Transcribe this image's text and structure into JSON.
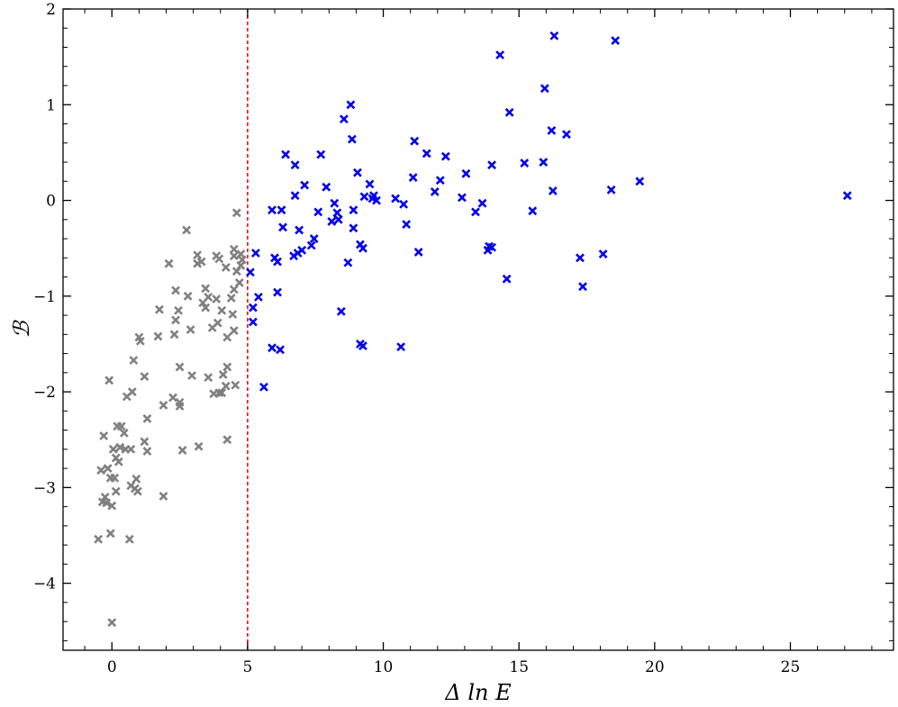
{
  "chart_data": {
    "type": "scatter",
    "title": "",
    "xlabel": "Δ ln E",
    "ylabel": "ℬ",
    "xlim": [
      -1.8,
      28.8
    ],
    "ylim": [
      -4.7,
      2.0
    ],
    "xticks": [
      0,
      5,
      10,
      15,
      20,
      25
    ],
    "yticks": [
      -4,
      -3,
      -2,
      -1,
      0,
      1,
      2
    ],
    "grid": false,
    "marker": "x",
    "threshold": {
      "x": 5,
      "color": "#e00000",
      "style": "dashed"
    },
    "series": [
      {
        "color": "#808080",
        "points": [
          [
            -0.5,
            -3.54
          ],
          [
            -0.4,
            -2.82
          ],
          [
            -0.35,
            -3.15
          ],
          [
            -0.3,
            -2.46
          ],
          [
            -0.25,
            -3.1
          ],
          [
            -0.2,
            -3.16
          ],
          [
            -0.15,
            -2.8
          ],
          [
            -0.1,
            -1.88
          ],
          [
            -0.05,
            -2.9
          ],
          [
            -0.05,
            -3.48
          ],
          [
            0,
            -4.41
          ],
          [
            0,
            -3.19
          ],
          [
            0.05,
            -2.6
          ],
          [
            0.1,
            -2.9
          ],
          [
            0.15,
            -3.04
          ],
          [
            0.15,
            -2.69
          ],
          [
            0.2,
            -2.36
          ],
          [
            0.25,
            -2.73
          ],
          [
            0.3,
            -2.58
          ],
          [
            0.35,
            -2.36
          ],
          [
            0.45,
            -2.43
          ],
          [
            0.5,
            -2.6
          ],
          [
            0.55,
            -2.05
          ],
          [
            0.65,
            -3.54
          ],
          [
            0.7,
            -2.6
          ],
          [
            0.7,
            -2.98
          ],
          [
            0.75,
            -2.0
          ],
          [
            0.8,
            -1.67
          ],
          [
            0.85,
            -3.01
          ],
          [
            0.9,
            -2.91
          ],
          [
            0.95,
            -3.04
          ],
          [
            1.0,
            -1.43
          ],
          [
            1.05,
            -1.47
          ],
          [
            1.2,
            -1.84
          ],
          [
            1.2,
            -2.52
          ],
          [
            1.3,
            -2.28
          ],
          [
            1.3,
            -2.62
          ],
          [
            1.7,
            -1.42
          ],
          [
            1.75,
            -1.14
          ],
          [
            1.9,
            -3.09
          ],
          [
            1.9,
            -2.14
          ],
          [
            2.1,
            -0.66
          ],
          [
            2.25,
            -2.06
          ],
          [
            2.3,
            -1.4
          ],
          [
            2.35,
            -1.25
          ],
          [
            2.35,
            -0.94
          ],
          [
            2.45,
            -1.15
          ],
          [
            2.5,
            -2.15
          ],
          [
            2.5,
            -2.11
          ],
          [
            2.5,
            -1.74
          ],
          [
            2.6,
            -2.61
          ],
          [
            2.75,
            -0.31
          ],
          [
            2.8,
            -1.0
          ],
          [
            2.9,
            -1.35
          ],
          [
            2.95,
            -1.83
          ],
          [
            3.15,
            -0.66
          ],
          [
            3.15,
            -0.57
          ],
          [
            3.2,
            -2.57
          ],
          [
            3.3,
            -0.64
          ],
          [
            3.35,
            -1.07
          ],
          [
            3.45,
            -1.12
          ],
          [
            3.45,
            -0.92
          ],
          [
            3.55,
            -1.01
          ],
          [
            3.55,
            -1.85
          ],
          [
            3.7,
            -1.33
          ],
          [
            3.75,
            -2.02
          ],
          [
            3.85,
            -1.03
          ],
          [
            3.85,
            -0.58
          ],
          [
            3.9,
            -1.28
          ],
          [
            3.95,
            -2.01
          ],
          [
            3.95,
            -0.61
          ],
          [
            4.05,
            -1.15
          ],
          [
            4.05,
            -2.01
          ],
          [
            4.1,
            -1.82
          ],
          [
            4.2,
            -0.7
          ],
          [
            4.2,
            -1.94
          ],
          [
            4.25,
            -1.74
          ],
          [
            4.25,
            -1.43
          ],
          [
            4.25,
            -2.5
          ],
          [
            4.4,
            -1.02
          ],
          [
            4.45,
            -1.19
          ],
          [
            4.5,
            -0.93
          ],
          [
            4.5,
            -0.58
          ],
          [
            4.5,
            -0.51
          ],
          [
            4.5,
            -1.36
          ],
          [
            4.55,
            -1.93
          ],
          [
            4.6,
            -0.74
          ],
          [
            4.6,
            -0.13
          ],
          [
            4.7,
            -0.86
          ],
          [
            4.75,
            -0.56
          ],
          [
            4.75,
            -0.68
          ],
          [
            4.8,
            -0.62
          ]
        ]
      },
      {
        "color": "#0000ee",
        "points": [
          [
            5.1,
            -0.75
          ],
          [
            5.2,
            -1.27
          ],
          [
            5.2,
            -1.12
          ],
          [
            5.3,
            -0.55
          ],
          [
            5.4,
            -1.01
          ],
          [
            5.6,
            -1.95
          ],
          [
            5.9,
            -0.1
          ],
          [
            5.9,
            -1.54
          ],
          [
            6.0,
            -0.6
          ],
          [
            6.1,
            -0.64
          ],
          [
            6.1,
            -0.96
          ],
          [
            6.2,
            -1.56
          ],
          [
            6.25,
            -0.1
          ],
          [
            6.3,
            -0.28
          ],
          [
            6.4,
            0.48
          ],
          [
            6.7,
            -0.58
          ],
          [
            6.75,
            0.05
          ],
          [
            6.75,
            0.37
          ],
          [
            6.85,
            -0.55
          ],
          [
            6.9,
            -0.31
          ],
          [
            7.0,
            -0.52
          ],
          [
            7.1,
            0.16
          ],
          [
            7.35,
            -0.47
          ],
          [
            7.45,
            -0.4
          ],
          [
            7.6,
            -0.12
          ],
          [
            7.7,
            0.48
          ],
          [
            7.9,
            0.14
          ],
          [
            8.1,
            -0.22
          ],
          [
            8.2,
            -0.03
          ],
          [
            8.3,
            -0.13
          ],
          [
            8.35,
            -0.2
          ],
          [
            8.45,
            -1.16
          ],
          [
            8.55,
            0.85
          ],
          [
            8.7,
            -0.65
          ],
          [
            8.8,
            1.0
          ],
          [
            8.85,
            0.64
          ],
          [
            8.9,
            -0.1
          ],
          [
            8.9,
            -0.29
          ],
          [
            9.05,
            0.29
          ],
          [
            9.15,
            -1.5
          ],
          [
            9.15,
            -0.46
          ],
          [
            9.25,
            -0.5
          ],
          [
            9.25,
            -1.52
          ],
          [
            9.3,
            0.04
          ],
          [
            9.5,
            0.17
          ],
          [
            9.6,
            0.02
          ],
          [
            9.65,
            0.05
          ],
          [
            9.75,
            0.0
          ],
          [
            10.45,
            0.02
          ],
          [
            10.65,
            -1.53
          ],
          [
            10.75,
            -0.04
          ],
          [
            10.85,
            -0.25
          ],
          [
            11.1,
            0.24
          ],
          [
            11.15,
            0.62
          ],
          [
            11.3,
            -0.54
          ],
          [
            11.6,
            0.49
          ],
          [
            11.9,
            0.09
          ],
          [
            12.1,
            0.21
          ],
          [
            12.3,
            0.46
          ],
          [
            12.9,
            0.03
          ],
          [
            13.05,
            0.28
          ],
          [
            13.4,
            -0.12
          ],
          [
            13.65,
            -0.03
          ],
          [
            13.85,
            -0.52
          ],
          [
            13.9,
            -0.48
          ],
          [
            14.0,
            0.37
          ],
          [
            14.0,
            -0.49
          ],
          [
            14.3,
            1.52
          ],
          [
            14.55,
            -0.82
          ],
          [
            14.65,
            0.92
          ],
          [
            15.2,
            0.39
          ],
          [
            15.5,
            -0.11
          ],
          [
            15.9,
            0.4
          ],
          [
            15.95,
            1.17
          ],
          [
            16.2,
            0.73
          ],
          [
            16.25,
            0.1
          ],
          [
            16.3,
            1.72
          ],
          [
            16.75,
            0.69
          ],
          [
            17.25,
            -0.6
          ],
          [
            17.35,
            -0.9
          ],
          [
            18.1,
            -0.56
          ],
          [
            18.4,
            0.11
          ],
          [
            18.55,
            1.67
          ],
          [
            19.45,
            0.2
          ],
          [
            27.1,
            0.05
          ]
        ]
      }
    ]
  }
}
